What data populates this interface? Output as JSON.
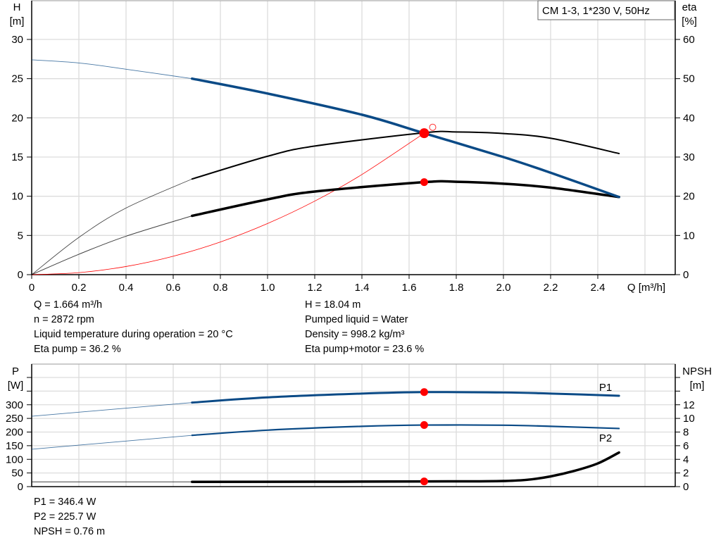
{
  "chart_data": [
    {
      "type": "line",
      "title": "CM 1-3, 1*230 V, 50Hz",
      "xlabel": "Q [m³/h]",
      "ylabel": "H",
      "ylabel_unit": "[m]",
      "y2label": "eta",
      "y2label_unit": "[%]",
      "xlim": [
        0,
        2.73
      ],
      "ylim": [
        0,
        30
      ],
      "y2lim": [
        0,
        60
      ],
      "x_ticks": [
        "0",
        "0.2",
        "0.4",
        "0.6",
        "0.8",
        "1.0",
        "1.2",
        "1.4",
        "1.6",
        "1.8",
        "2.0",
        "2.2",
        "2.4"
      ],
      "y_ticks": [
        0,
        5,
        10,
        15,
        20,
        25,
        30
      ],
      "y2_ticks": [
        0,
        10,
        20,
        30,
        40,
        50,
        60
      ],
      "grid": true,
      "legend_placement": "top-right",
      "operating_range_start_q": 0.68,
      "series": [
        {
          "key": "H",
          "axis": "left",
          "color": "#0a4a86",
          "x": [
            0,
            0.2,
            0.4,
            0.68,
            1.0,
            1.4,
            1.664,
            2.0,
            2.2,
            2.49
          ],
          "y": [
            27.4,
            27.0,
            26.2,
            25.0,
            23.1,
            20.4,
            18.04,
            15.0,
            13.0,
            9.9
          ]
        },
        {
          "key": "eta_pump",
          "axis": "right",
          "color": "#000000",
          "x": [
            0,
            0.2,
            0.4,
            0.68,
            1.0,
            1.2,
            1.664,
            1.8,
            2.0,
            2.2,
            2.49
          ],
          "y": [
            0,
            9.5,
            17,
            24.4,
            30.2,
            32.8,
            36.2,
            36.4,
            36.0,
            34.8,
            30.9
          ]
        },
        {
          "key": "eta_pump_motor",
          "axis": "right",
          "color": "#000000",
          "x": [
            0,
            0.2,
            0.4,
            0.68,
            1.0,
            1.2,
            1.664,
            1.8,
            2.0,
            2.2,
            2.49
          ],
          "y": [
            0,
            5.2,
            9.8,
            15.0,
            19.2,
            21.2,
            23.6,
            23.7,
            23.2,
            22.2,
            19.8
          ]
        },
        {
          "key": "system_curve",
          "axis": "left",
          "color": "#ff0000",
          "x": [
            0,
            0.2,
            0.4,
            0.6,
            0.8,
            1.0,
            1.2,
            1.4,
            1.664
          ],
          "y": [
            0,
            0.26,
            1.04,
            2.35,
            4.17,
            6.52,
            9.38,
            12.77,
            18.04
          ]
        }
      ],
      "duty_point": {
        "q": 1.664,
        "h": 18.04,
        "eta_pump": 36.2,
        "eta_pump_motor": 23.6
      },
      "requested_point": {
        "q": 1.7,
        "h": 18.8
      }
    },
    {
      "type": "line",
      "ylabel": "P",
      "ylabel_unit": "[W]",
      "y2label": "NPSH",
      "y2label_unit": "[m]",
      "xlim": [
        0,
        2.73
      ],
      "ylim": [
        0,
        400
      ],
      "y2lim": [
        0,
        16
      ],
      "y_ticks": [
        0,
        50,
        100,
        150,
        200,
        250,
        300,
        350,
        400
      ],
      "y_tick_labels": [
        "0",
        "50",
        "100",
        "150",
        "200",
        "250",
        "300",
        "",
        ""
      ],
      "y2_ticks": [
        0,
        2,
        4,
        6,
        8,
        10,
        12,
        14,
        16
      ],
      "y2_tick_labels": [
        "0",
        "2",
        "4",
        "6",
        "8",
        "10",
        "12",
        "",
        ""
      ],
      "grid": true,
      "series": [
        {
          "key": "P1",
          "name": "P1",
          "axis": "left",
          "color": "#0a4a86",
          "x": [
            0,
            0.68,
            1.0,
            1.4,
            1.664,
            2.0,
            2.2,
            2.49
          ],
          "y": [
            258,
            308,
            327,
            341,
            346.4,
            345,
            341,
            333
          ]
        },
        {
          "key": "P2",
          "name": "P2",
          "axis": "left",
          "color": "#0a4a86",
          "x": [
            0,
            0.68,
            1.0,
            1.4,
            1.664,
            2.0,
            2.2,
            2.49
          ],
          "y": [
            137,
            188,
            207,
            221,
            225.7,
            225,
            221,
            213
          ]
        },
        {
          "key": "NPSH",
          "axis": "right",
          "color": "#000000",
          "x": [
            0,
            0.68,
            1.2,
            1.664,
            1.9,
            2.0,
            2.1,
            2.2,
            2.3,
            2.4,
            2.49
          ],
          "y": [
            0.7,
            0.7,
            0.72,
            0.76,
            0.78,
            0.82,
            1.0,
            1.5,
            2.3,
            3.4,
            5.0
          ]
        }
      ],
      "duty_point": {
        "q": 1.664,
        "p1": 346.4,
        "p2": 225.7,
        "npsh": 0.76
      }
    }
  ],
  "info_top": {
    "left": [
      "Q = 1.664 m³/h",
      "n = 2872 rpm",
      "Liquid temperature during operation = 20 °C",
      "Eta pump = 36.2 %"
    ],
    "right": [
      "H = 18.04 m",
      "Pumped liquid = Water",
      "Density = 998.2 kg/m³",
      "Eta pump+motor = 23.6 %"
    ]
  },
  "info_bottom": [
    "P1 = 346.4 W",
    "P2 = 225.7 W",
    "NPSH = 0.76 m"
  ]
}
